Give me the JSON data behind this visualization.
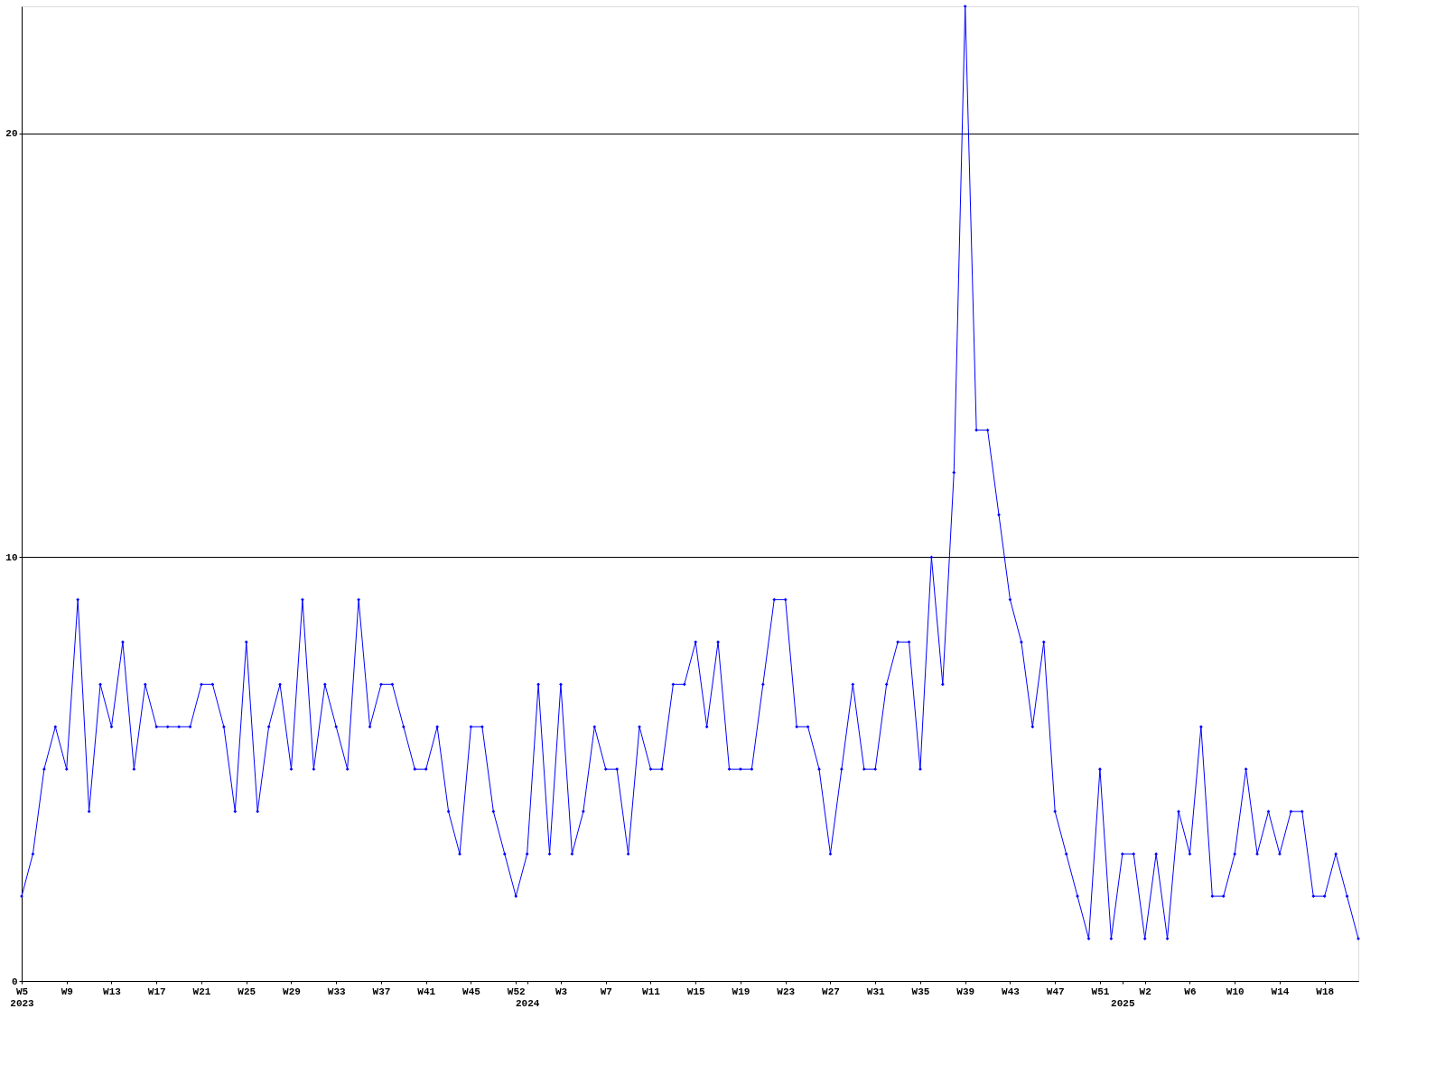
{
  "chart_data": {
    "type": "line",
    "categories": [
      "W5\n2023",
      null,
      null,
      null,
      "W9",
      null,
      null,
      null,
      "W13",
      null,
      null,
      null,
      "W17",
      null,
      null,
      null,
      "W21",
      null,
      null,
      null,
      "W25",
      null,
      null,
      null,
      "W29",
      null,
      null,
      null,
      "W33",
      null,
      null,
      null,
      "W37",
      null,
      null,
      null,
      "W41",
      null,
      null,
      null,
      "W45",
      null,
      null,
      null,
      "W52",
      "\n2024",
      null,
      null,
      "W3",
      null,
      null,
      null,
      "W7",
      null,
      null,
      null,
      "W11",
      null,
      null,
      null,
      "W15",
      null,
      null,
      null,
      "W19",
      null,
      null,
      null,
      "W23",
      null,
      null,
      null,
      "W27",
      null,
      null,
      null,
      "W31",
      null,
      null,
      null,
      "W35",
      null,
      null,
      null,
      "W39",
      null,
      null,
      null,
      "W43",
      null,
      null,
      null,
      "W47",
      null,
      null,
      null,
      "W51",
      null,
      "\n2025",
      null,
      "W2",
      null,
      null,
      null,
      "W6",
      null,
      null,
      null,
      "W10",
      null,
      null,
      null,
      "W14",
      null,
      null,
      null,
      "W18",
      null,
      null,
      null
    ],
    "series": [
      {
        "color": "#0000ff",
        "values": [
          2,
          3,
          5,
          6,
          5,
          9,
          4,
          7,
          6,
          8,
          5,
          7,
          6,
          6,
          6,
          6,
          7,
          7,
          6,
          4,
          8,
          4,
          6,
          7,
          5,
          9,
          5,
          7,
          6,
          5,
          9,
          6,
          7,
          7,
          6,
          5,
          5,
          6,
          4,
          3,
          6,
          6,
          4,
          3,
          2,
          3,
          7,
          3,
          7,
          3,
          4,
          6,
          5,
          5,
          3,
          6,
          5,
          5,
          7,
          7,
          8,
          6,
          8,
          5,
          5,
          5,
          7,
          9,
          9,
          6,
          6,
          5,
          3,
          5,
          7,
          5,
          5,
          7,
          8,
          8,
          5,
          10,
          7,
          12,
          23,
          13,
          13,
          11,
          9,
          8,
          6,
          8,
          4,
          3,
          2,
          1,
          5,
          1,
          3,
          3,
          1,
          3,
          1,
          4,
          3,
          6,
          2,
          2,
          3,
          5,
          3,
          4,
          3,
          4,
          4,
          2,
          2,
          3,
          2,
          1
        ]
      }
    ],
    "ylim": [
      0,
      23
    ],
    "yticks": [
      0,
      10,
      20
    ],
    "grid": "y",
    "marker": "diamond",
    "line_style": "solid"
  }
}
